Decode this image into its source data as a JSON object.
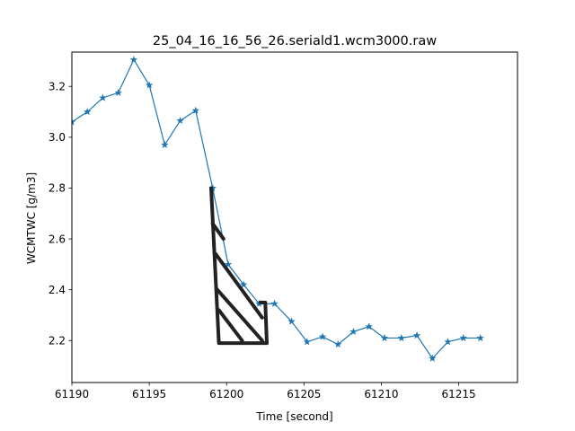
{
  "chart_data": {
    "type": "line",
    "title": "25_04_16_16_56_26.seriald1.wcm3000.raw",
    "xlabel": "Time [second]",
    "ylabel": "WCMTWC [g/m3]",
    "xlim": [
      61190,
      61218.8
    ],
    "ylim": [
      2.035,
      3.335
    ],
    "xticks": [
      61190,
      61195,
      61200,
      61205,
      61210,
      61215
    ],
    "yticks": [
      2.2,
      2.4,
      2.6,
      2.8,
      3.0,
      3.2
    ],
    "xtick_labels": [
      "61190",
      "61195",
      "61200",
      "61205",
      "61210",
      "61215"
    ],
    "ytick_labels": [
      "2.2",
      "2.4",
      "2.6",
      "2.8",
      "3.0",
      "3.2"
    ],
    "grid": false,
    "series": [
      {
        "color": "#1f77b4",
        "marker": "star",
        "x": [
          61190,
          61191,
          61192,
          61193,
          61194,
          61195,
          61196,
          61197,
          61198,
          61199.1,
          61200.1,
          61201.1,
          61202.1,
          61203.1,
          61204.2,
          61205.2,
          61206.2,
          61207.2,
          61208.2,
          61209.2,
          61210.2,
          61211.3,
          61212.3,
          61213.3,
          61214.3,
          61215.3,
          61216.4
        ],
        "y": [
          3.06,
          3.1,
          3.155,
          3.175,
          3.305,
          3.205,
          2.97,
          3.065,
          3.105,
          2.8,
          2.5,
          2.42,
          2.345,
          2.345,
          2.275,
          2.195,
          2.215,
          2.185,
          2.235,
          2.255,
          2.21,
          2.21,
          2.22,
          2.13,
          2.195,
          2.21,
          2.21
        ]
      }
    ],
    "annotation_strokes": {
      "color": "#222222",
      "paths": [
        [
          [
            61199.0,
            2.8
          ],
          [
            61199.5,
            2.19
          ],
          [
            61202.6,
            2.19
          ],
          [
            61202.5,
            2.35
          ],
          [
            61202.2,
            2.35
          ]
        ],
        [
          [
            61199.1,
            2.66
          ],
          [
            61199.8,
            2.6
          ]
        ],
        [
          [
            61199.3,
            2.54
          ],
          [
            61202.3,
            2.29
          ]
        ],
        [
          [
            61199.4,
            2.4
          ],
          [
            61202.3,
            2.2
          ]
        ],
        [
          [
            61199.5,
            2.32
          ],
          [
            61201.0,
            2.2
          ]
        ]
      ]
    }
  }
}
